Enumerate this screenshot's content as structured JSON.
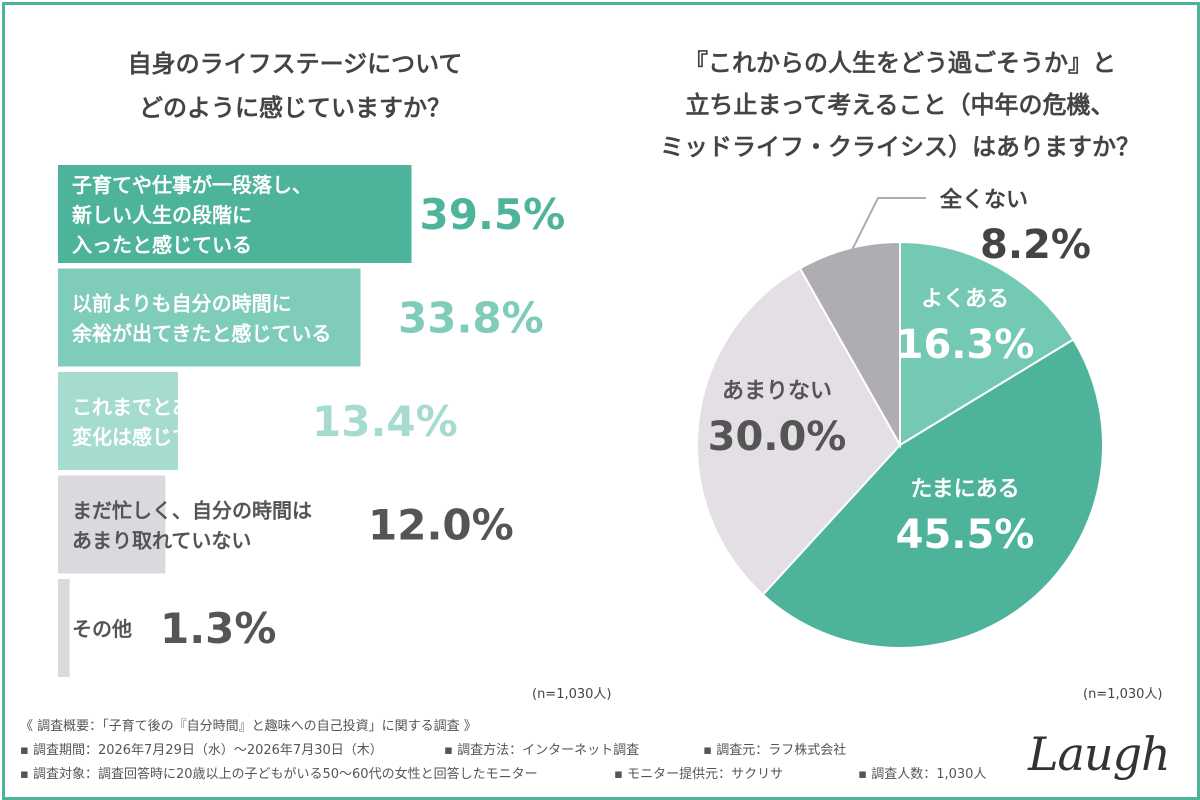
{
  "left_title": [
    "自身のライフステージについて",
    "どのように感じていますか？"
  ],
  "right_title": [
    "『これからの人生をどう過ごそうか』と",
    "立ち止まって考えること（中年の危機、",
    "ミッドライフ・クライシス）はありますか？"
  ],
  "colors": {
    "frame": "#4db39b",
    "bar_dark": "#4db39b",
    "bar_light": "#7fccba",
    "bar_pale": "#a6dccf",
    "bar_gray": "#dcd9de",
    "pie_teal": "#4db39b",
    "pie_light_teal": "#74c9b5",
    "pie_light_gray": "#e3dfe4",
    "pie_gray": "#b0adb2"
  },
  "chart_data": [
    {
      "type": "bar",
      "orientation": "horizontal",
      "categories": [
        [
          "子育てや仕事が一段落し、",
          "新しい人生の段階に",
          "入ったと感じている"
        ],
        [
          "以前よりも自分の時間に",
          "余裕が出てきたと感じている"
        ],
        [
          "これまでとあまり",
          "変化は感じていない"
        ],
        [
          "まだ忙しく、自分の時間は",
          "あまり取れていない"
        ],
        [
          "その他"
        ]
      ],
      "values": [
        39.5,
        33.8,
        13.4,
        12.0,
        1.3
      ],
      "value_labels": [
        "39.5%",
        "33.8%",
        "13.4%",
        "12.0%",
        "1.3%"
      ],
      "note": "(n=1,030人)"
    },
    {
      "type": "pie",
      "slices": [
        {
          "label": "よくある",
          "value": 16.3,
          "value_label": "16.3%"
        },
        {
          "label": "たまにある",
          "value": 45.5,
          "value_label": "45.5%"
        },
        {
          "label": "あまりない",
          "value": 30.0,
          "value_label": "30.0%"
        },
        {
          "label": "全くない",
          "value": 8.2,
          "value_label": "8.2%"
        }
      ],
      "note": "(n=1,030人)"
    }
  ],
  "footer": {
    "heading": "《 調査概要：「子育て後の『自分時間』と趣味への自己投資」に関する調査 》",
    "row1": [
      "▪ 調査期間：2026年7月29日（水）〜2026年7月30日（木）",
      "▪ 調査方法：インターネット調査",
      "▪ 調査元：ラフ株式会社"
    ],
    "row2": [
      "▪ 調査対象：調査回答時に20歳以上の子どもがいる50〜60代の女性と回答したモニター",
      "▪ モニター提供元：サクリサ",
      "▪ 調査人数：1,030人"
    ]
  },
  "logo": "Laugh"
}
